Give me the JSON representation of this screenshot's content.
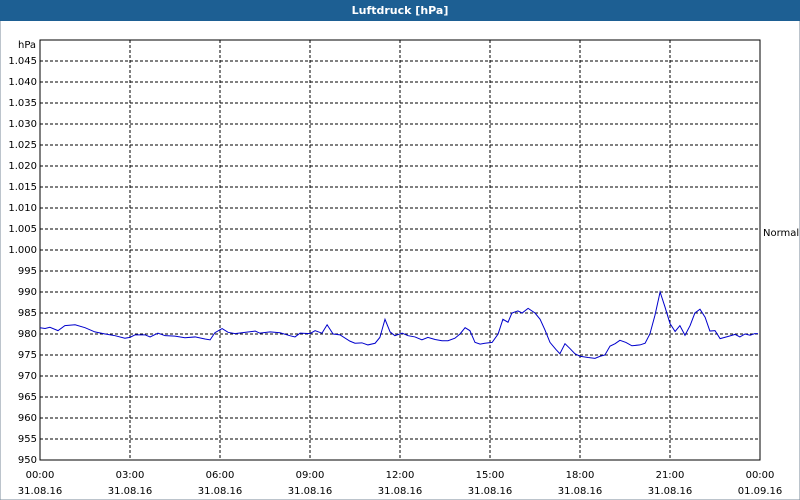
{
  "chart_data": {
    "type": "line",
    "title": "Luftdruck [hPa]",
    "y_label": "hPa",
    "annotation": "Normal",
    "series": [
      {
        "color": "#0000cc",
        "x": [
          0,
          0.17,
          0.33,
          0.6,
          0.83,
          1.17,
          1.5,
          1.83,
          2.17,
          2.5,
          2.83,
          3,
          3.17,
          3.5,
          3.67,
          3.93,
          4.17,
          4.5,
          4.83,
          5.17,
          5.5,
          5.67,
          5.83,
          6.07,
          6.27,
          6.5,
          6.83,
          7.17,
          7.33,
          7.67,
          8,
          8.33,
          8.5,
          8.67,
          9,
          9.17,
          9.4,
          9.57,
          9.77,
          10,
          10.33,
          10.5,
          10.73,
          10.93,
          11.17,
          11.33,
          11.5,
          11.67,
          11.83,
          12.07,
          12.27,
          12.5,
          12.73,
          12.93,
          13.17,
          13.4,
          13.6,
          13.83,
          14,
          14.17,
          14.33,
          14.5,
          14.67,
          14.83,
          15.07,
          15.27,
          15.43,
          15.6,
          15.73,
          15.93,
          16.07,
          16.27,
          16.5,
          16.67,
          16.83,
          17,
          17.2,
          17.33,
          17.5,
          17.67,
          17.83,
          18,
          18.27,
          18.5,
          18.67,
          18.83,
          19,
          19.17,
          19.33,
          19.53,
          19.73,
          20,
          20.17,
          20.33,
          20.5,
          20.67,
          20.83,
          21,
          21.17,
          21.33,
          21.5,
          21.67,
          21.83,
          22,
          22.17,
          22.33,
          22.5,
          22.67,
          22.93,
          23.17,
          23.33,
          23.5,
          23.67,
          23.83,
          23.93
        ],
        "values": [
          981.5,
          981.3,
          981.6,
          980.8,
          982,
          982.2,
          981.5,
          980.5,
          980,
          979.6,
          979,
          979.2,
          979.8,
          979.8,
          979.3,
          980.2,
          979.6,
          979.5,
          979.1,
          979.3,
          978.8,
          978.6,
          980.3,
          981.3,
          980.4,
          980.1,
          980.4,
          980.7,
          980.2,
          980.5,
          980.3,
          979.6,
          979.3,
          980.2,
          980.1,
          980.8,
          980.2,
          982.2,
          980,
          979.8,
          978.3,
          977.8,
          977.9,
          977.4,
          977.8,
          979.2,
          983.5,
          980.5,
          979.6,
          980.2,
          979.6,
          979.3,
          978.6,
          979.2,
          978.7,
          978.4,
          978.4,
          979,
          980,
          981.5,
          980.8,
          978,
          977.6,
          977.8,
          978,
          980,
          983.5,
          982.8,
          985,
          985.5,
          985,
          986.1,
          985,
          983.5,
          981,
          978,
          976.3,
          975.3,
          977.7,
          976.5,
          975.3,
          974.7,
          974.4,
          974.2,
          974.7,
          975,
          977.1,
          977.7,
          978.5,
          978,
          977.2,
          977.4,
          977.8,
          980,
          984.5,
          990,
          986.5,
          982.5,
          980.6,
          982,
          979.7,
          982,
          985,
          985.9,
          984,
          980.7,
          980.8,
          978.9,
          979.4,
          979.9,
          979.3,
          980,
          979.7,
          980.1,
          980.1
        ]
      }
    ],
    "xlim": [
      0,
      24
    ],
    "xticks": [
      {
        "value": 0,
        "label": [
          "00:00",
          "31.08.16"
        ]
      },
      {
        "value": 3,
        "label": [
          "03:00",
          "31.08.16"
        ]
      },
      {
        "value": 6,
        "label": [
          "06:00",
          "31.08.16"
        ]
      },
      {
        "value": 9,
        "label": [
          "09:00",
          "31.08.16"
        ]
      },
      {
        "value": 12,
        "label": [
          "12:00",
          "31.08.16"
        ]
      },
      {
        "value": 15,
        "label": [
          "15:00",
          "31.08.16"
        ]
      },
      {
        "value": 18,
        "label": [
          "18:00",
          "31.08.16"
        ]
      },
      {
        "value": 21,
        "label": [
          "21:00",
          "31.08.16"
        ]
      },
      {
        "value": 24,
        "label": [
          "00:00",
          "01.09.16"
        ]
      }
    ],
    "ylim": [
      950,
      1050
    ],
    "yticks": [
      950,
      955,
      960,
      965,
      970,
      975,
      980,
      985,
      990,
      995,
      {
        "value": 1000,
        "label": "1.000"
      },
      {
        "value": 1005,
        "label": "1.005"
      },
      {
        "value": 1010,
        "label": "1.010"
      },
      {
        "value": 1015,
        "label": "1.015"
      },
      {
        "value": 1020,
        "label": "1.020"
      },
      {
        "value": 1025,
        "label": "1.025"
      },
      {
        "value": 1030,
        "label": "1.030"
      },
      {
        "value": 1035,
        "label": "1.035"
      },
      {
        "value": 1040,
        "label": "1.040"
      },
      {
        "value": 1045,
        "label": "1.045"
      }
    ],
    "grid": true
  }
}
